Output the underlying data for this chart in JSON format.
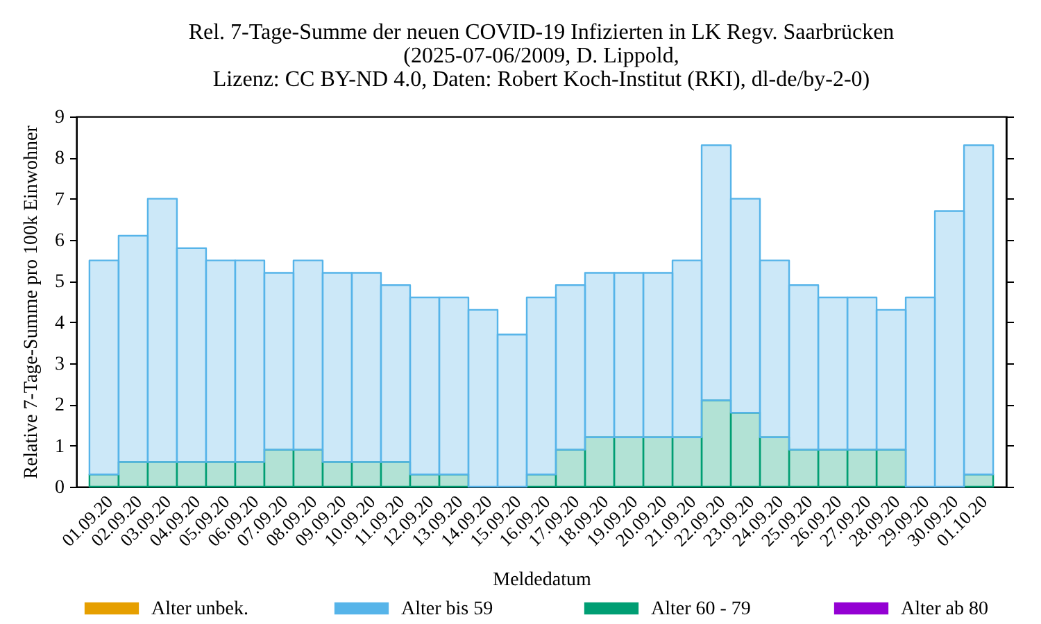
{
  "chart_data": {
    "type": "bar",
    "title": "Rel. 7-Tage-Summe der neuen COVID-19 Infizierten in LK Regv. Saarbrücken\n(2025-07-06/2009, D. Lippold,\nLizenz: CC BY-ND 4.0, Daten: Robert Koch-Institut (RKI), dl-de/by-2-0)",
    "xlabel": "Meldedatum",
    "ylabel": "Relative 7-Tage-Summe pro 100k Einwohner",
    "categories": [
      "01.09.20",
      "02.09.20",
      "03.09.20",
      "04.09.20",
      "05.09.20",
      "06.09.20",
      "07.09.20",
      "08.09.20",
      "09.09.20",
      "10.09.20",
      "11.09.20",
      "12.09.20",
      "13.09.20",
      "14.09.20",
      "15.09.20",
      "16.09.20",
      "17.09.20",
      "18.09.20",
      "19.09.20",
      "20.09.20",
      "21.09.20",
      "22.09.20",
      "23.09.20",
      "24.09.20",
      "25.09.20",
      "26.09.20",
      "27.09.20",
      "28.09.20",
      "29.09.20",
      "30.09.20",
      "01.10.20"
    ],
    "stacked": true,
    "series": [
      {
        "name": "Alter ab 80",
        "color": "#9400d3",
        "values": [
          null,
          null,
          null,
          null,
          null,
          null,
          null,
          null,
          null,
          null,
          null,
          null,
          null,
          null,
          null,
          null,
          null,
          null,
          null,
          null,
          null,
          null,
          null,
          null,
          null,
          null,
          null,
          null,
          null,
          null,
          null
        ]
      },
      {
        "name": "Alter 60 - 79",
        "color": "#009e73",
        "values": [
          0.3,
          0.6,
          0.6,
          0.6,
          0.6,
          0.6,
          0.9,
          0.9,
          0.6,
          0.6,
          0.6,
          0.3,
          0.3,
          null,
          null,
          0.3,
          0.9,
          1.2,
          1.2,
          1.2,
          1.2,
          2.1,
          1.8,
          1.2,
          0.9,
          0.9,
          0.9,
          0.9,
          null,
          null,
          0.3
        ]
      },
      {
        "name": "Alter bis 59",
        "color": "#56b4e9",
        "values": [
          5.2,
          5.5,
          6.4,
          5.2,
          4.9,
          4.9,
          4.3,
          4.6,
          4.6,
          4.6,
          4.3,
          4.3,
          4.3,
          4.3,
          3.7,
          4.3,
          4.0,
          4.0,
          4.0,
          4.0,
          4.3,
          6.2,
          5.2,
          4.3,
          4.0,
          3.7,
          3.7,
          3.4,
          4.6,
          6.7,
          8.0
        ]
      },
      {
        "name": "Alter unbek.",
        "color": "#e69f00",
        "values": [
          null,
          null,
          null,
          null,
          null,
          null,
          null,
          null,
          null,
          null,
          null,
          null,
          null,
          null,
          null,
          null,
          null,
          null,
          null,
          null,
          null,
          null,
          null,
          null,
          null,
          null,
          null,
          null,
          null,
          null,
          null
        ]
      }
    ],
    "ylim": [
      0,
      9
    ],
    "yticks": [
      0,
      1,
      2,
      3,
      4,
      5,
      6,
      7,
      8,
      9
    ],
    "legend": "bottom"
  }
}
